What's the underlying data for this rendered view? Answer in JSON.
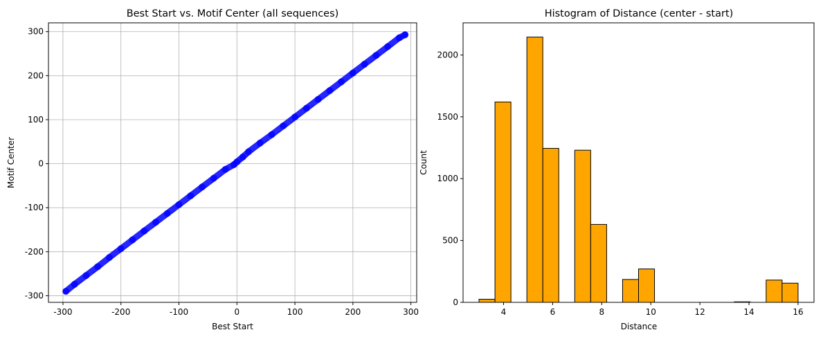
{
  "chart_data": [
    {
      "type": "scatter",
      "title": "Best Start vs. Motif Center (all sequences)",
      "xlabel": "Best Start",
      "ylabel": "Motif Center",
      "xlim": [
        -325,
        310
      ],
      "ylim": [
        -315,
        320
      ],
      "xticks": [
        -300,
        -200,
        -100,
        0,
        100,
        200,
        300
      ],
      "yticks": [
        -300,
        -200,
        -100,
        0,
        100,
        200,
        300
      ],
      "grid": true,
      "point_color": "#0000ff",
      "reference_line": {
        "style": "dashed",
        "color": "#87a4f0",
        "x": [
          -295,
          290
        ],
        "y": [
          -295,
          290
        ]
      },
      "series": [
        {
          "x": [
            -295,
            -280,
            -260,
            -240,
            -220,
            -200,
            -180,
            -160,
            -140,
            -120,
            -100,
            -80,
            -60,
            -40,
            -20,
            -5,
            0,
            10,
            20,
            40,
            60,
            80,
            100,
            120,
            140,
            160,
            180,
            200,
            220,
            240,
            260,
            280,
            290
          ],
          "y": [
            -290,
            -274,
            -254,
            -234,
            -213,
            -193,
            -173,
            -153,
            -133,
            -113,
            -93,
            -73,
            -53,
            -33,
            -13,
            -2,
            4,
            15,
            27,
            47,
            66,
            86,
            106,
            126,
            146,
            166,
            186,
            206,
            226,
            246,
            266,
            286,
            293
          ]
        }
      ]
    },
    {
      "type": "bar",
      "title": "Histogram of Distance (center - start)",
      "xlabel": "Distance",
      "ylabel": "Count",
      "xlim": [
        2.35,
        16.65
      ],
      "ylim": [
        0,
        2260
      ],
      "xticks": [
        4,
        6,
        8,
        10,
        12,
        14,
        16
      ],
      "yticks": [
        0,
        500,
        1000,
        1500,
        2000
      ],
      "grid": false,
      "bar_color": "#ffa500",
      "edge_color": "#000000",
      "bins": [
        {
          "start": 3.0,
          "end": 3.65,
          "count": 25
        },
        {
          "start": 3.65,
          "end": 4.3,
          "count": 1620
        },
        {
          "start": 4.3,
          "end": 4.95,
          "count": 0
        },
        {
          "start": 4.95,
          "end": 5.6,
          "count": 2145
        },
        {
          "start": 5.6,
          "end": 6.25,
          "count": 1245
        },
        {
          "start": 6.25,
          "end": 6.9,
          "count": 0
        },
        {
          "start": 6.9,
          "end": 7.55,
          "count": 1230
        },
        {
          "start": 7.55,
          "end": 8.2,
          "count": 630
        },
        {
          "start": 8.2,
          "end": 8.85,
          "count": 0
        },
        {
          "start": 8.85,
          "end": 9.5,
          "count": 185
        },
        {
          "start": 9.5,
          "end": 10.15,
          "count": 270
        },
        {
          "start": 10.15,
          "end": 10.8,
          "count": 0
        },
        {
          "start": 10.8,
          "end": 11.45,
          "count": 0
        },
        {
          "start": 11.45,
          "end": 12.1,
          "count": 0
        },
        {
          "start": 12.1,
          "end": 12.75,
          "count": 0
        },
        {
          "start": 12.75,
          "end": 13.4,
          "count": 0
        },
        {
          "start": 13.4,
          "end": 14.05,
          "count": 4
        },
        {
          "start": 14.05,
          "end": 14.7,
          "count": 0
        },
        {
          "start": 14.7,
          "end": 15.35,
          "count": 180
        },
        {
          "start": 15.35,
          "end": 16.0,
          "count": 155
        }
      ]
    }
  ]
}
